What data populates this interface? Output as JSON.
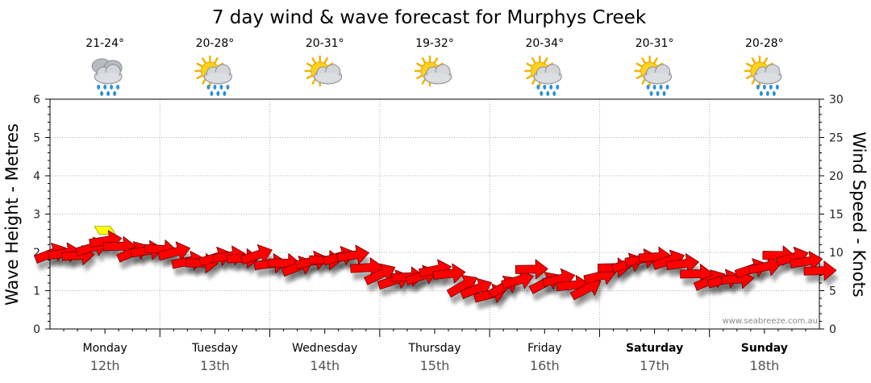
{
  "chart_data": {
    "type": "line",
    "title": "7 day wind & wave forecast for Murphys Creek",
    "ylabel": "Wave Height - Metres",
    "y2label": "Wind Speed - Knots",
    "ylim": [
      0,
      6
    ],
    "y2lim": [
      0,
      30
    ],
    "yticks": [
      "0",
      "1",
      "2",
      "3",
      "4",
      "5",
      "6"
    ],
    "y2ticks": [
      "0",
      "5",
      "10",
      "15",
      "20",
      "25",
      "30"
    ],
    "watermark": "www.seabreeze.com.au",
    "days": [
      {
        "name": "Monday",
        "date": "12th",
        "temp": "21-24°",
        "icon": "rain-cloud-icon",
        "weekend": false
      },
      {
        "name": "Tuesday",
        "date": "13th",
        "temp": "20-28°",
        "icon": "sun-cloud-showers-icon",
        "weekend": false
      },
      {
        "name": "Wednesday",
        "date": "14th",
        "temp": "20-31°",
        "icon": "sun-cloud-icon",
        "weekend": false
      },
      {
        "name": "Thursday",
        "date": "15th",
        "temp": "19-32°",
        "icon": "sun-cloud-icon",
        "weekend": false
      },
      {
        "name": "Friday",
        "date": "16th",
        "temp": "20-34°",
        "icon": "sun-cloud-showers-icon",
        "weekend": false
      },
      {
        "name": "Saturday",
        "date": "17th",
        "temp": "20-31°",
        "icon": "sun-cloud-showers-icon",
        "weekend": true
      },
      {
        "name": "Sunday",
        "date": "18th",
        "temp": "20-28°",
        "icon": "sun-cloud-showers-icon",
        "weekend": true
      }
    ],
    "series": [
      {
        "name": "Wind Speed (knots)",
        "color": "#ff0000",
        "highlight_color": "#ffff00",
        "x_hours": [
          0,
          3,
          6,
          9,
          12,
          15,
          18,
          21,
          24,
          27,
          30,
          33,
          36,
          39,
          42,
          45,
          48,
          51,
          54,
          57,
          60,
          63,
          66,
          69,
          72,
          75,
          78,
          81,
          84,
          87,
          90,
          93,
          96,
          99,
          102,
          105,
          108,
          111,
          114,
          117,
          120,
          123,
          126,
          129,
          132,
          135,
          138,
          141,
          144,
          147,
          150,
          153,
          156,
          159,
          162,
          165,
          168
        ],
        "values": [
          9.8,
          9.9,
          9.6,
          10.6,
          11.5,
          10.8,
          10.0,
          10.2,
          10.4,
          10.0,
          8.8,
          8.6,
          9.3,
          9.5,
          9.2,
          9.6,
          8.5,
          8.6,
          8.1,
          8.8,
          9.0,
          9.4,
          9.6,
          8.0,
          7.1,
          6.3,
          6.8,
          6.9,
          7.7,
          7.2,
          5.6,
          5.2,
          4.5,
          5.5,
          6.3,
          7.8,
          6.0,
          6.5,
          5.7,
          5.2,
          6.9,
          8.0,
          8.5,
          9.1,
          9.4,
          8.9,
          8.5,
          7.2,
          6.3,
          6.4,
          6.5,
          7.8,
          8.1,
          9.6,
          9.3,
          8.8,
          7.6
        ],
        "highlight_index": 4,
        "direction_deg": [
          245,
          250,
          240,
          255,
          250,
          245,
          240,
          250,
          255,
          260,
          245,
          250,
          255,
          250,
          245,
          250,
          255,
          250,
          245,
          240,
          250,
          255,
          250,
          240,
          235,
          230,
          240,
          250,
          245,
          235,
          225,
          220,
          215,
          225,
          235,
          245,
          230,
          240,
          235,
          230,
          240,
          245,
          250,
          245,
          240,
          250,
          255,
          245,
          240,
          235,
          240,
          250,
          245,
          250,
          255,
          250,
          245
        ]
      }
    ]
  }
}
